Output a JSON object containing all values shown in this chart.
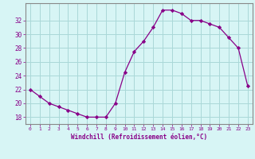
{
  "hours": [
    0,
    1,
    2,
    3,
    4,
    5,
    6,
    7,
    8,
    9,
    10,
    11,
    12,
    13,
    14,
    15,
    16,
    17,
    18,
    19,
    20,
    21,
    22,
    23
  ],
  "windchill": [
    22,
    21,
    20,
    19.5,
    19,
    18.5,
    18,
    18,
    18,
    20,
    24.5,
    27.5,
    29,
    31,
    33.5,
    33.5,
    33,
    32,
    32,
    31.5,
    31,
    29.5,
    28,
    22.5
  ],
  "line_color": "#880088",
  "marker": "D",
  "marker_size": 2.2,
  "bg_color": "#d7f5f5",
  "grid_color": "#aad8d8",
  "axis_color": "#880088",
  "xlabel": "Windchill (Refroidissement éolien,°C)",
  "ylim": [
    17.0,
    34.5
  ],
  "xlim": [
    -0.5,
    23.5
  ],
  "yticks": [
    18,
    20,
    22,
    24,
    26,
    28,
    30,
    32
  ],
  "xticks": [
    0,
    1,
    2,
    3,
    4,
    5,
    6,
    7,
    8,
    9,
    10,
    11,
    12,
    13,
    14,
    15,
    16,
    17,
    18,
    19,
    20,
    21,
    22,
    23
  ]
}
